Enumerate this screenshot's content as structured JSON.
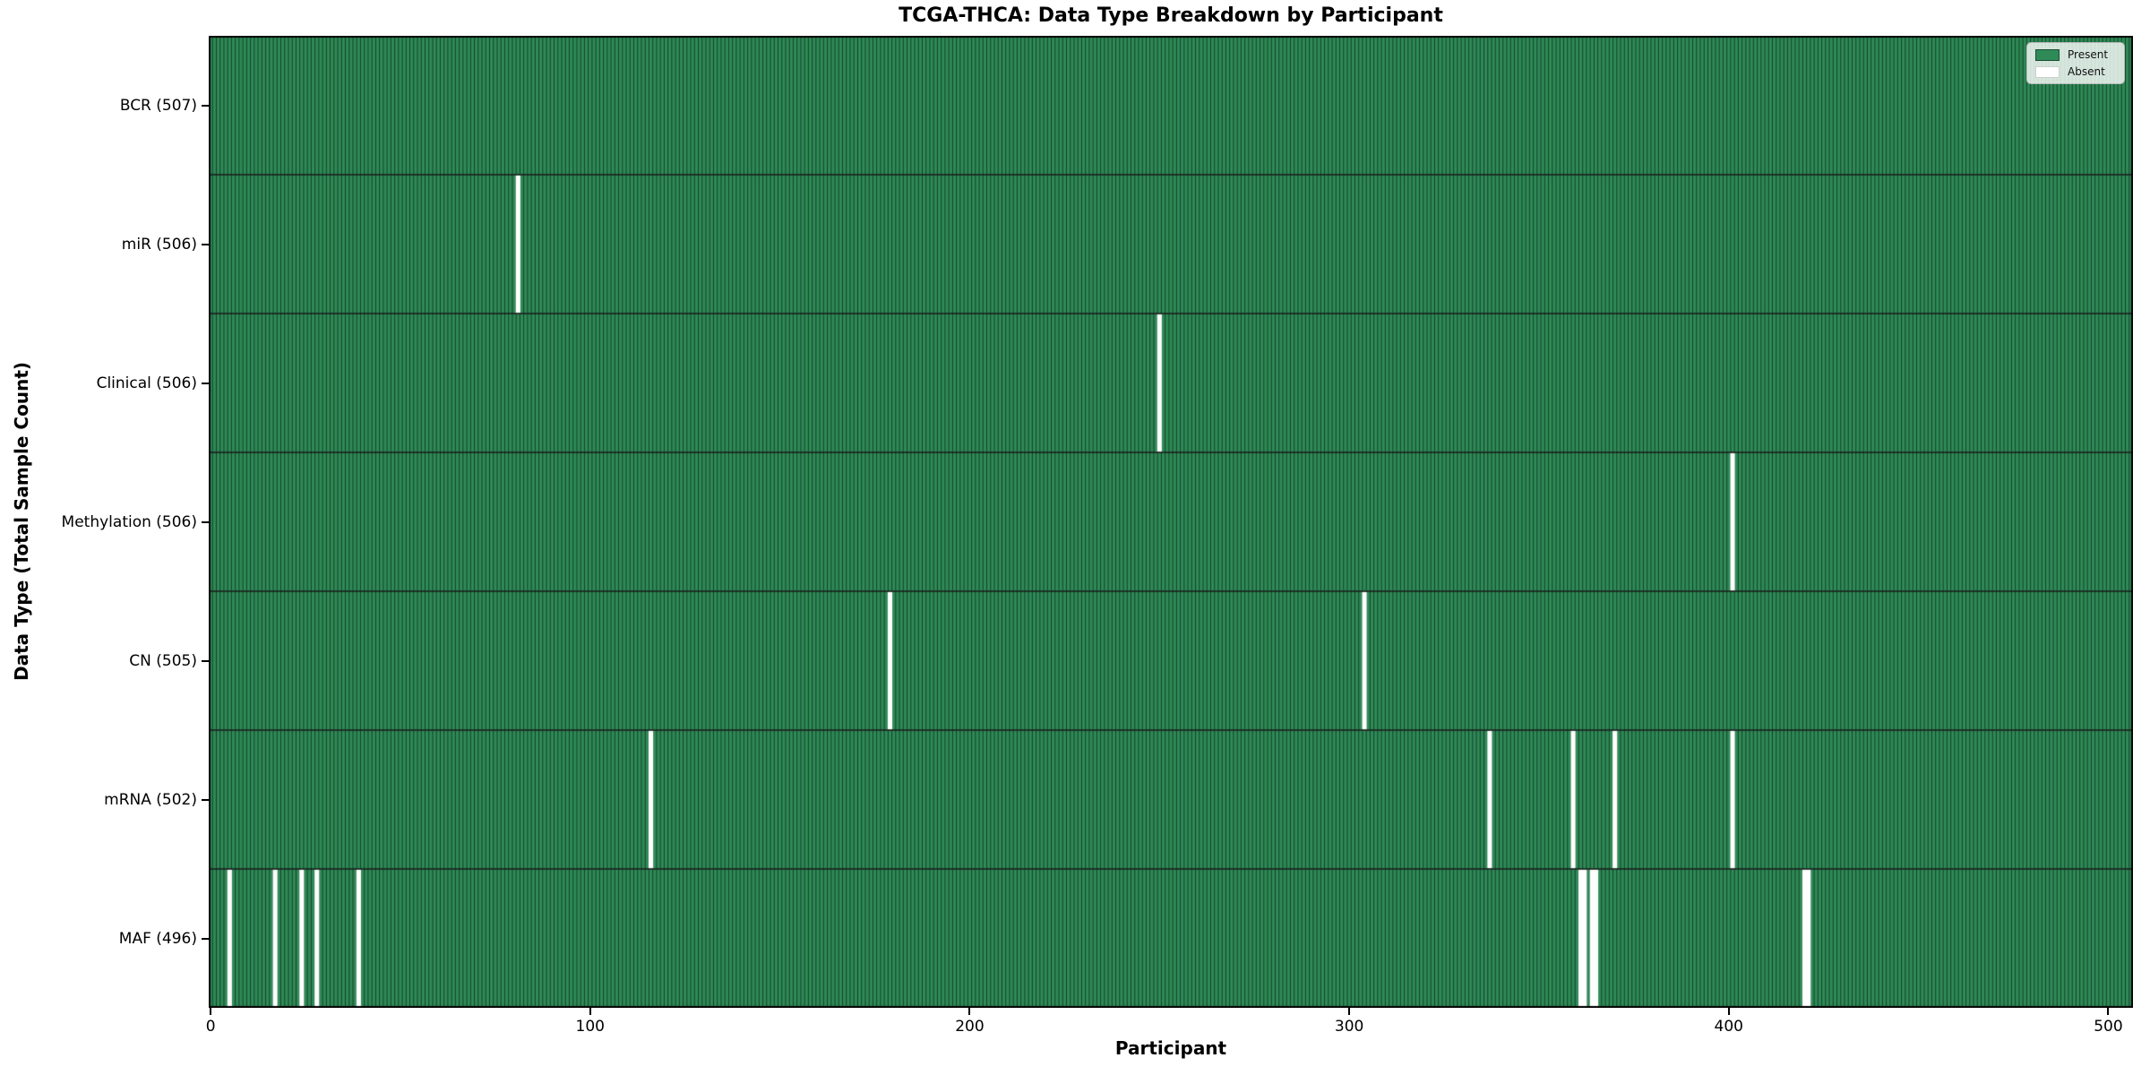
{
  "chart_data": {
    "type": "heatmap",
    "title": "TCGA-THCA: Data Type Breakdown by Participant",
    "xlabel": "Participant",
    "ylabel": "Data Type (Total Sample Count)",
    "x_ticks": [
      0,
      100,
      200,
      300,
      400,
      500
    ],
    "n_participants": 507,
    "xlim": [
      -0.5,
      506.5
    ],
    "grid": false,
    "legend": {
      "position": "upper right",
      "entries": [
        {
          "label": "Present",
          "color": "#2e8b57",
          "edge": "#1b4d32"
        },
        {
          "label": "Absent",
          "color": "#ffffff",
          "edge": "#cfcfcf"
        }
      ]
    },
    "rows": [
      {
        "label": "BCR (507)",
        "total": 507,
        "absent": []
      },
      {
        "label": "miR (506)",
        "total": 506,
        "absent": [
          81
        ]
      },
      {
        "label": "Clinical (506)",
        "total": 506,
        "absent": [
          250
        ]
      },
      {
        "label": "Methylation (506)",
        "total": 506,
        "absent": [
          401
        ]
      },
      {
        "label": "CN (505)",
        "total": 505,
        "absent": [
          179,
          304
        ]
      },
      {
        "label": "mRNA (502)",
        "total": 502,
        "absent": [
          116,
          337,
          359,
          370,
          401
        ]
      },
      {
        "label": "MAF (496)",
        "total": 496,
        "absent": [
          5,
          17,
          24,
          28,
          39,
          361,
          362,
          364,
          365,
          420,
          421
        ]
      }
    ],
    "colors": {
      "present": "#2e8b57",
      "absent": "#ffffff",
      "bar_edge": "rgba(0,0,0,0.55)",
      "row_divider": "#1a1a1a",
      "spine": "#000000",
      "background": "#ffffff"
    }
  }
}
